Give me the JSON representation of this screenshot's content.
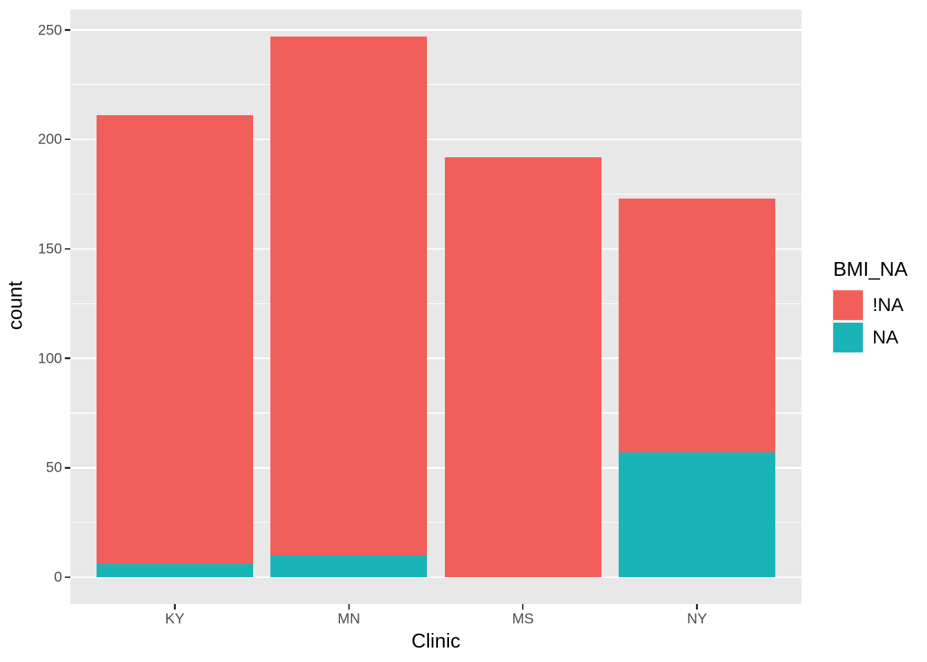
{
  "chart_data": {
    "type": "bar",
    "stacked": true,
    "title": "",
    "xlabel": "Clinic",
    "ylabel": "count",
    "categories": [
      "KY",
      "MN",
      "MS",
      "NY"
    ],
    "series": [
      {
        "name": "!NA",
        "color": "#F25F5A",
        "values": [
          205,
          237,
          192,
          116
        ]
      },
      {
        "name": "NA",
        "color": "#1AB4B8",
        "values": [
          6,
          10,
          0,
          57
        ]
      }
    ],
    "totals": [
      211,
      247,
      192,
      173
    ],
    "y_ticks": [
      0,
      50,
      100,
      150,
      200,
      250
    ],
    "y_minor_ticks": [
      25,
      75,
      125,
      175,
      225
    ],
    "ylim": [
      0,
      250
    ],
    "grid": true,
    "panel_bg": "#E8E8E8",
    "gridline_color": "#FFFFFF",
    "legend": {
      "title": "BMI_NA",
      "position": "right",
      "entries": [
        {
          "label": "!NA",
          "color": "#F25F5A"
        },
        {
          "label": "NA",
          "color": "#1AB4B8"
        }
      ]
    }
  }
}
